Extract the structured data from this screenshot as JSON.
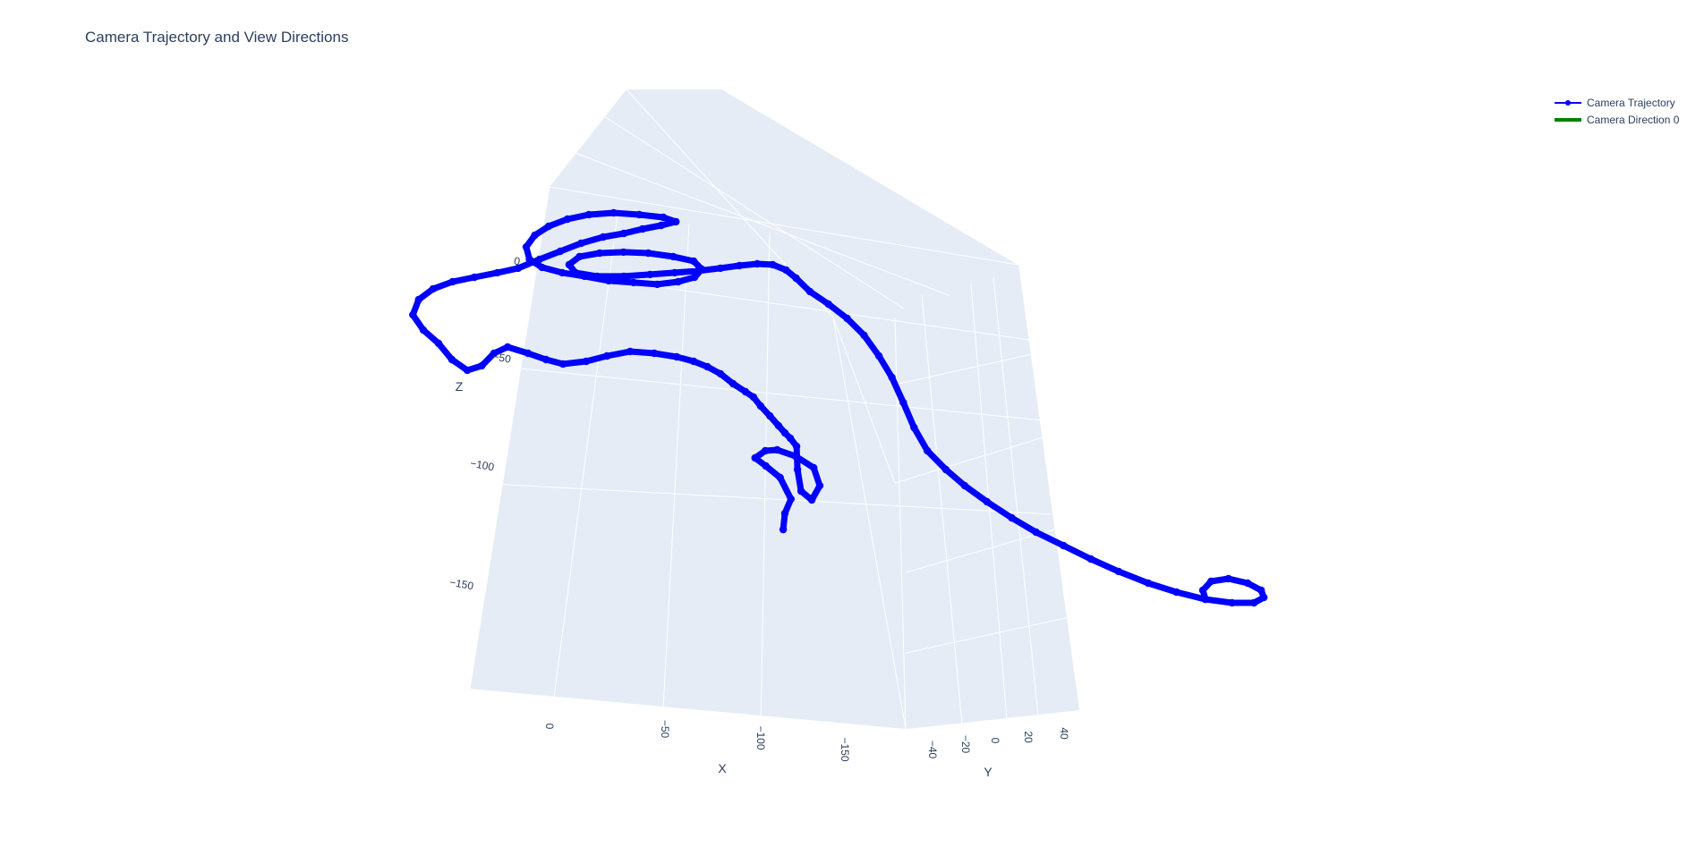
{
  "chart_data": {
    "type": "scatter3d",
    "title": "Camera Trajectory and View Directions",
    "axes": {
      "x": {
        "label": "X",
        "ticks": [
          "0",
          "−50",
          "−100",
          "−150"
        ]
      },
      "y": {
        "label": "Y",
        "ticks": [
          "−40",
          "−20",
          "0",
          "20",
          "40"
        ]
      },
      "z": {
        "label": "Z",
        "ticks": [
          "0",
          "−50",
          "−100",
          "−150"
        ]
      }
    },
    "legend": {
      "placement": "top-right",
      "entries": [
        "Camera Trajectory",
        "Camera Direction 0"
      ]
    },
    "grid": true,
    "background_color": "#e5ecf6",
    "series": [
      {
        "name": "Camera Trajectory",
        "mode": "lines+markers",
        "color": "#0000ff",
        "note_points_screen_estimated": true,
        "path": [
          [
            0.4596,
            0.6252
          ],
          [
            0.4606,
            0.6061
          ],
          [
            0.4642,
            0.5892
          ],
          [
            0.4578,
            0.5639
          ],
          [
            0.4494,
            0.5502
          ],
          [
            0.4431,
            0.5407
          ],
          [
            0.4491,
            0.5322
          ],
          [
            0.4561,
            0.5312
          ],
          [
            0.4669,
            0.5386
          ],
          [
            0.4775,
            0.5523
          ],
          [
            0.4811,
            0.5734
          ],
          [
            0.4764,
            0.5903
          ],
          [
            0.4701,
            0.5798
          ],
          [
            0.468,
            0.5544
          ],
          [
            0.4675,
            0.527
          ],
          [
            0.4638,
            0.5174
          ],
          [
            0.4606,
            0.5111
          ],
          [
            0.4569,
            0.5026
          ],
          [
            0.4518,
            0.491
          ],
          [
            0.4464,
            0.4794
          ],
          [
            0.4422,
            0.4688
          ],
          [
            0.4375,
            0.4625
          ],
          [
            0.4302,
            0.453
          ],
          [
            0.4228,
            0.4413
          ],
          [
            0.4152,
            0.433
          ],
          [
            0.4071,
            0.4266
          ],
          [
            0.3971,
            0.4213
          ],
          [
            0.384,
            0.4171
          ],
          [
            0.3698,
            0.415
          ],
          [
            0.3562,
            0.4203
          ],
          [
            0.344,
            0.4266
          ],
          [
            0.3304,
            0.4298
          ],
          [
            0.3204,
            0.4245
          ],
          [
            0.3099,
            0.4171
          ],
          [
            0.2979,
            0.4097
          ],
          [
            0.2899,
            0.4171
          ],
          [
            0.2827,
            0.4319
          ],
          [
            0.2742,
            0.4372
          ],
          [
            0.2652,
            0.4245
          ],
          [
            0.2574,
            0.4055
          ],
          [
            0.2484,
            0.3896
          ],
          [
            0.2423,
            0.3717
          ],
          [
            0.2457,
            0.3537
          ],
          [
            0.2542,
            0.341
          ],
          [
            0.2656,
            0.3326
          ],
          [
            0.2784,
            0.3273
          ],
          [
            0.2919,
            0.322
          ],
          [
            0.3041,
            0.3167
          ],
          [
            0.3166,
            0.3062
          ],
          [
            0.3288,
            0.2967
          ],
          [
            0.341,
            0.2872
          ],
          [
            0.354,
            0.2798
          ],
          [
            0.3661,
            0.2756
          ],
          [
            0.3771,
            0.2703
          ],
          [
            0.3881,
            0.2661
          ],
          [
            0.3967,
            0.2618
          ],
          [
            0.3893,
            0.2566
          ],
          [
            0.3751,
            0.2534
          ],
          [
            0.3601,
            0.2513
          ],
          [
            0.3456,
            0.2534
          ],
          [
            0.333,
            0.2587
          ],
          [
            0.322,
            0.2672
          ],
          [
            0.3138,
            0.2778
          ],
          [
            0.3088,
            0.2915
          ],
          [
            0.3107,
            0.3062
          ],
          [
            0.318,
            0.3156
          ],
          [
            0.3299,
            0.322
          ],
          [
            0.343,
            0.3262
          ],
          [
            0.3572,
            0.3315
          ],
          [
            0.3718,
            0.3336
          ],
          [
            0.3857,
            0.3357
          ],
          [
            0.398,
            0.3326
          ],
          [
            0.4076,
            0.3273
          ],
          [
            0.4118,
            0.3178
          ],
          [
            0.4071,
            0.3083
          ],
          [
            0.395,
            0.303
          ],
          [
            0.3804,
            0.2988
          ],
          [
            0.3659,
            0.2977
          ],
          [
            0.3519,
            0.2988
          ],
          [
            0.3401,
            0.303
          ],
          [
            0.334,
            0.3125
          ],
          [
            0.3377,
            0.322
          ],
          [
            0.3504,
            0.3262
          ],
          [
            0.3661,
            0.3262
          ],
          [
            0.3815,
            0.3241
          ],
          [
            0.3959,
            0.322
          ],
          [
            0.4096,
            0.3199
          ],
          [
            0.4228,
            0.3167
          ],
          [
            0.4339,
            0.3136
          ],
          [
            0.4444,
            0.3115
          ],
          [
            0.4534,
            0.3125
          ],
          [
            0.4613,
            0.3188
          ],
          [
            0.4672,
            0.3284
          ],
          [
            0.4753,
            0.3442
          ],
          [
            0.4862,
            0.359
          ],
          [
            0.4971,
            0.3759
          ],
          [
            0.5071,
            0.3959
          ],
          [
            0.5158,
            0.4203
          ],
          [
            0.5234,
            0.4456
          ],
          [
            0.5301,
            0.4752
          ],
          [
            0.5364,
            0.5047
          ],
          [
            0.5442,
            0.5322
          ],
          [
            0.5551,
            0.5544
          ],
          [
            0.5661,
            0.5734
          ],
          [
            0.5792,
            0.5924
          ],
          [
            0.5937,
            0.6114
          ],
          [
            0.608,
            0.6283
          ],
          [
            0.6241,
            0.6441
          ],
          [
            0.6401,
            0.66
          ],
          [
            0.6564,
            0.6747
          ],
          [
            0.6738,
            0.6885
          ],
          [
            0.6904,
            0.699
          ],
          [
            0.7072,
            0.7075
          ],
          [
            0.723,
            0.7117
          ],
          [
            0.7359,
            0.7117
          ],
          [
            0.7417,
            0.7054
          ],
          [
            0.7401,
            0.6969
          ],
          [
            0.7322,
            0.6885
          ],
          [
            0.7209,
            0.6832
          ],
          [
            0.7107,
            0.6864
          ],
          [
            0.7059,
            0.6969
          ],
          [
            0.7075,
            0.7075
          ]
        ]
      },
      {
        "name": "Camera Direction 0",
        "mode": "lines",
        "color": "#008000",
        "path": []
      }
    ]
  }
}
